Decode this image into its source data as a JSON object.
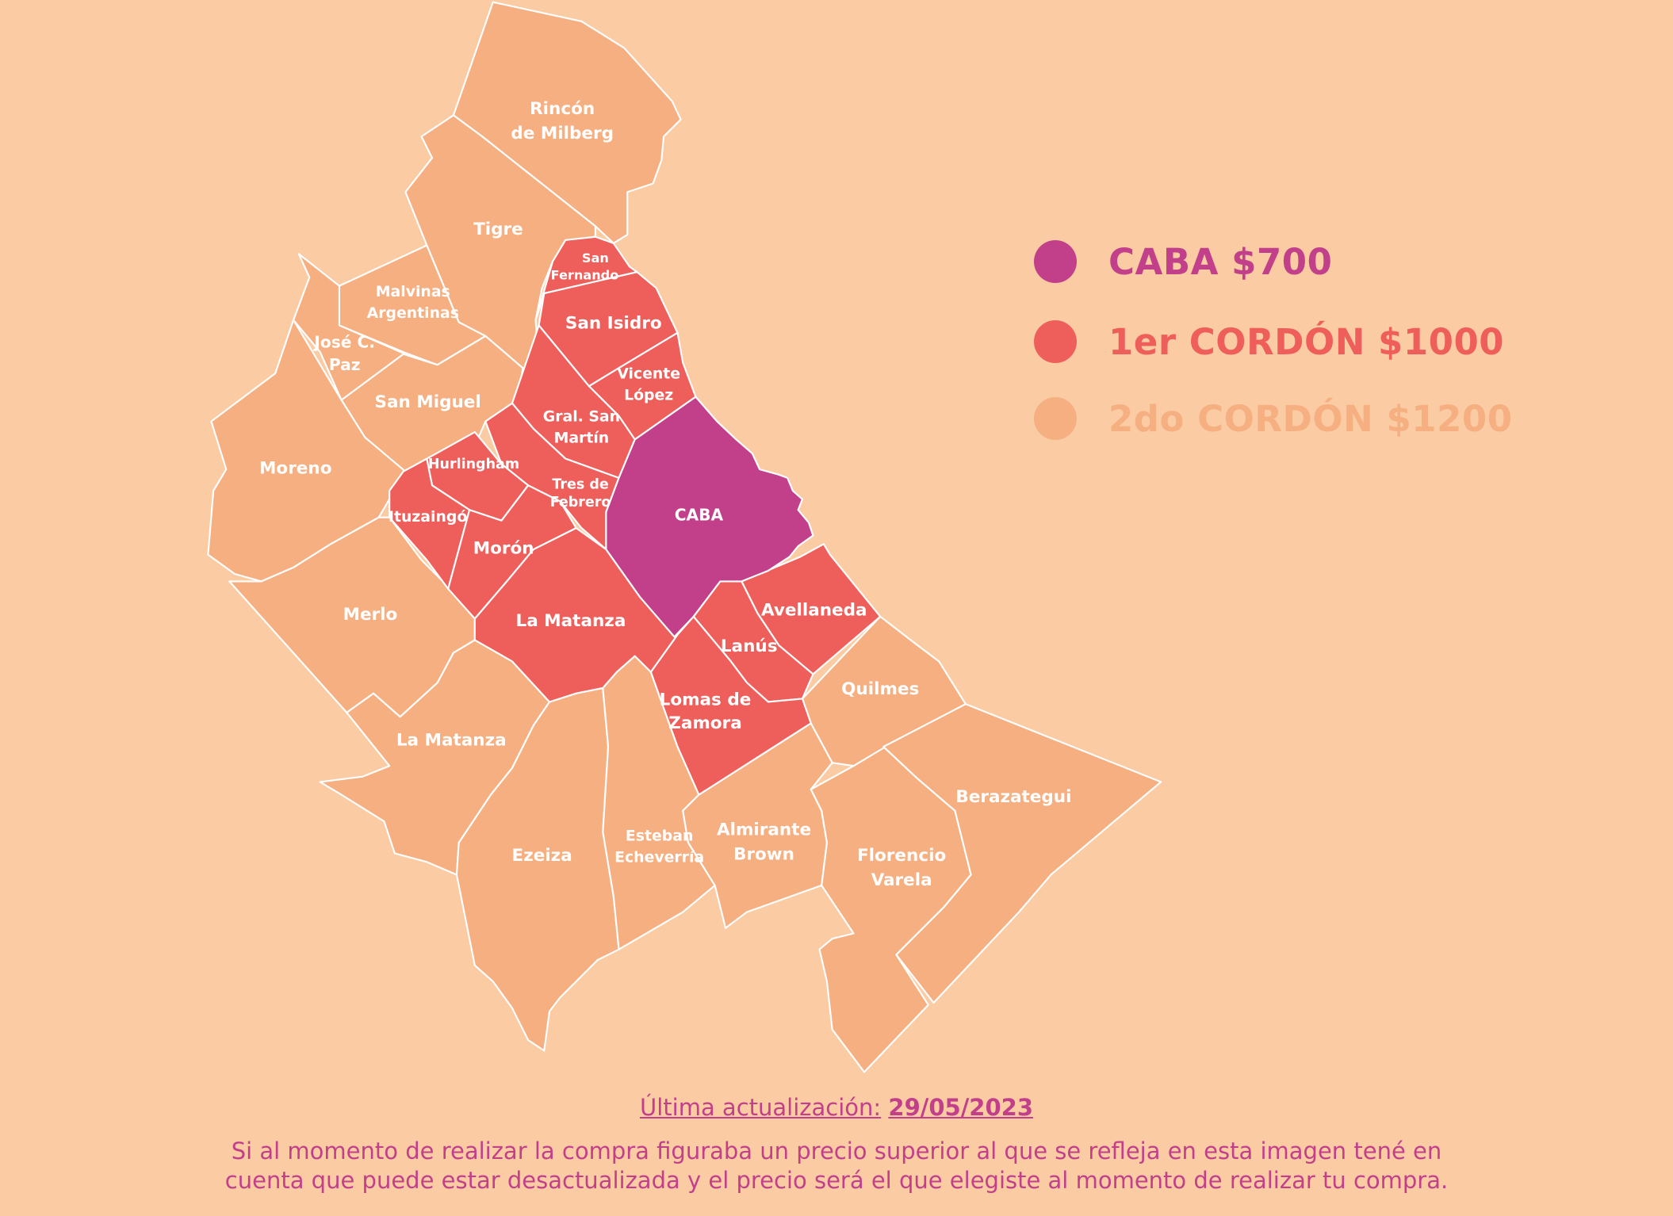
{
  "legend": [
    {
      "label": "CABA $700",
      "color": "#C2408A"
    },
    {
      "label": "1er CORDÓN $1000",
      "color": "#EE5F5B"
    },
    {
      "label": "2do CORDÓN $1200",
      "color": "#F5AF80"
    }
  ],
  "zones": {
    "caba": "CABA",
    "san_fernando": [
      "San",
      "Fernando"
    ],
    "san_isidro": "San Isidro",
    "vicente_lopez": [
      "Vicente",
      "López"
    ],
    "gral_san_martin": [
      "Gral. San",
      "Martín"
    ],
    "tres_de_febrero": [
      "Tres de",
      "Febrero"
    ],
    "hurlingham": "Hurlingham",
    "ituzaingo": "Ituzaingó",
    "moron": "Morón",
    "la_matanza_inner": "La Matanza",
    "avellaneda": "Avellaneda",
    "lanus": "Lanús",
    "lomas_de_zamora": [
      "Lomas de",
      "Zamora"
    ],
    "rincon_de_milberg": [
      "Rincón",
      "de Milberg"
    ],
    "tigre": "Tigre",
    "malvinas_argentinas": [
      "Malvinas",
      "Argentinas"
    ],
    "jose_c_paz": [
      "José C.",
      "Paz"
    ],
    "san_miguel": "San Miguel",
    "moreno": "Moreno",
    "merlo": "Merlo",
    "la_matanza_outer": "La Matanza",
    "ezeiza": "Ezeiza",
    "esteban_echeverria": [
      "Esteban",
      "Echeverría"
    ],
    "almirante_brown": [
      "Almirante",
      "Brown"
    ],
    "florencio_varela": [
      "Florencio",
      "Varela"
    ],
    "quilmes": "Quilmes",
    "berazategui": "Berazategui"
  },
  "footer": {
    "update_label": "Última actualización:",
    "update_date": "29/05/2023",
    "note_line1": "Si al momento de realizar la compra figuraba un precio superior al que se refleja en esta imagen tené en",
    "note_line2": "cuenta que puede estar desactualizada y el precio será el que elegiste al momento de realizar tu compra."
  }
}
